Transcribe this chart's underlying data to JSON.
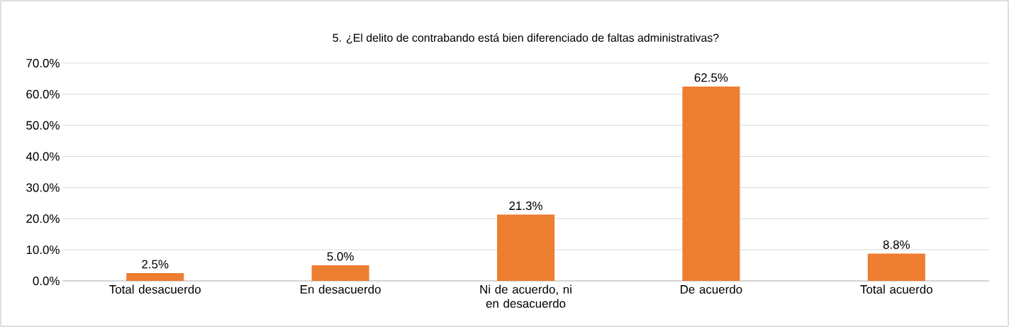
{
  "chart_data": {
    "type": "bar",
    "title": "5. ¿El delito de contrabando está bien diferenciado de faltas administrativas?",
    "categories": [
      "Total desacuerdo",
      "En desacuerdo",
      "Ni de acuerdo, ni en desacuerdo",
      "De acuerdo",
      "Total acuerdo"
    ],
    "values": [
      2.5,
      5.0,
      21.3,
      62.5,
      8.8
    ],
    "value_labels": [
      "2.5%",
      "5.0%",
      "21.3%",
      "62.5%",
      "8.8%"
    ],
    "color": "#ed7d31",
    "ylim": [
      0,
      70
    ],
    "yticks": [
      {
        "value": 0,
        "label": "0.0%"
      },
      {
        "value": 10,
        "label": "10.0%"
      },
      {
        "value": 20,
        "label": "20.0%"
      },
      {
        "value": 30,
        "label": "30.0%"
      },
      {
        "value": 40,
        "label": "40.0%"
      },
      {
        "value": 50,
        "label": "50.0%"
      },
      {
        "value": 60,
        "label": "60.0%"
      },
      {
        "value": 70,
        "label": "70.0%"
      }
    ],
    "grid": "y"
  }
}
